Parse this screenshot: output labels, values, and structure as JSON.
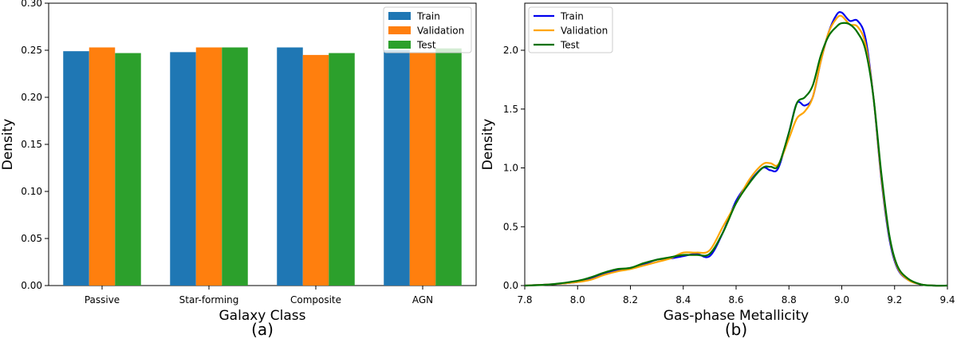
{
  "chart_data": [
    {
      "type": "bar",
      "panel_label": "(a)",
      "xlabel": "Galaxy Class",
      "ylabel": "Density",
      "ylim": [
        0,
        0.3
      ],
      "yticks": [
        "0.00",
        "0.05",
        "0.10",
        "0.15",
        "0.20",
        "0.25",
        "0.30"
      ],
      "categories": [
        "Passive",
        "Star-forming",
        "Composite",
        "AGN"
      ],
      "series": [
        {
          "name": "Train",
          "color": "#1f77b4",
          "values": [
            0.249,
            0.248,
            0.253,
            0.25
          ]
        },
        {
          "name": "Validation",
          "color": "#ff7f0e",
          "values": [
            0.253,
            0.253,
            0.245,
            0.247
          ]
        },
        {
          "name": "Test",
          "color": "#2ca02c",
          "values": [
            0.247,
            0.253,
            0.247,
            0.252
          ]
        }
      ],
      "legend": {
        "position": "top-right",
        "labels": [
          "Train",
          "Validation",
          "Test"
        ]
      }
    },
    {
      "type": "line",
      "panel_label": "(b)",
      "xlabel": "Gas-phase Metallicity",
      "ylabel": "Density",
      "xlim": [
        7.8,
        9.4
      ],
      "ylim": [
        0,
        2.4
      ],
      "xticks": [
        "7.8",
        "8.0",
        "8.2",
        "8.4",
        "8.6",
        "8.8",
        "9.0",
        "9.2",
        "9.4"
      ],
      "yticks": [
        "0.0",
        "0.5",
        "1.0",
        "1.5",
        "2.0"
      ],
      "series": [
        {
          "name": "Train",
          "color": "#0000ee",
          "x": [
            7.8,
            7.9,
            8.0,
            8.05,
            8.1,
            8.15,
            8.2,
            8.25,
            8.3,
            8.35,
            8.4,
            8.45,
            8.5,
            8.55,
            8.6,
            8.65,
            8.7,
            8.73,
            8.76,
            8.8,
            8.83,
            8.86,
            8.89,
            8.92,
            8.95,
            8.98,
            9.0,
            9.03,
            9.06,
            9.09,
            9.12,
            9.15,
            9.18,
            9.21,
            9.25,
            9.3,
            9.35,
            9.4
          ],
          "y": [
            0.0,
            0.01,
            0.03,
            0.06,
            0.1,
            0.13,
            0.15,
            0.18,
            0.22,
            0.23,
            0.25,
            0.27,
            0.25,
            0.45,
            0.72,
            0.88,
            1.0,
            0.98,
            1.0,
            1.3,
            1.55,
            1.53,
            1.6,
            1.9,
            2.15,
            2.3,
            2.32,
            2.25,
            2.25,
            2.1,
            1.6,
            0.9,
            0.4,
            0.15,
            0.05,
            0.01,
            0.0,
            0.0
          ]
        },
        {
          "name": "Validation",
          "color": "#ffa500",
          "x": [
            7.8,
            7.9,
            8.0,
            8.05,
            8.1,
            8.15,
            8.2,
            8.25,
            8.3,
            8.35,
            8.4,
            8.45,
            8.5,
            8.55,
            8.6,
            8.65,
            8.7,
            8.73,
            8.76,
            8.8,
            8.83,
            8.86,
            8.89,
            8.92,
            8.95,
            8.98,
            9.0,
            9.03,
            9.06,
            9.09,
            9.12,
            9.15,
            9.18,
            9.21,
            9.25,
            9.3,
            9.35,
            9.4
          ],
          "y": [
            0.0,
            0.01,
            0.03,
            0.05,
            0.09,
            0.12,
            0.14,
            0.17,
            0.2,
            0.23,
            0.28,
            0.28,
            0.3,
            0.5,
            0.7,
            0.9,
            1.03,
            1.04,
            1.03,
            1.25,
            1.42,
            1.48,
            1.6,
            1.9,
            2.15,
            2.27,
            2.29,
            2.22,
            2.2,
            2.05,
            1.6,
            0.92,
            0.42,
            0.16,
            0.05,
            0.01,
            0.0,
            0.0
          ]
        },
        {
          "name": "Test",
          "color": "#007000",
          "x": [
            7.8,
            7.9,
            8.0,
            8.05,
            8.1,
            8.15,
            8.2,
            8.25,
            8.3,
            8.35,
            8.4,
            8.45,
            8.5,
            8.55,
            8.6,
            8.65,
            8.7,
            8.73,
            8.76,
            8.8,
            8.83,
            8.86,
            8.89,
            8.92,
            8.95,
            8.98,
            9.0,
            9.03,
            9.06,
            9.09,
            9.12,
            9.15,
            9.18,
            9.21,
            9.25,
            9.3,
            9.35,
            9.4
          ],
          "y": [
            0.0,
            0.01,
            0.04,
            0.07,
            0.11,
            0.14,
            0.15,
            0.19,
            0.22,
            0.24,
            0.26,
            0.26,
            0.27,
            0.45,
            0.7,
            0.87,
            1.0,
            1.01,
            1.02,
            1.3,
            1.55,
            1.6,
            1.7,
            1.95,
            2.12,
            2.2,
            2.23,
            2.22,
            2.15,
            2.0,
            1.6,
            0.95,
            0.43,
            0.17,
            0.06,
            0.01,
            0.0,
            0.0
          ]
        }
      ],
      "legend": {
        "position": "top-left",
        "labels": [
          "Train",
          "Validation",
          "Test"
        ]
      }
    }
  ]
}
